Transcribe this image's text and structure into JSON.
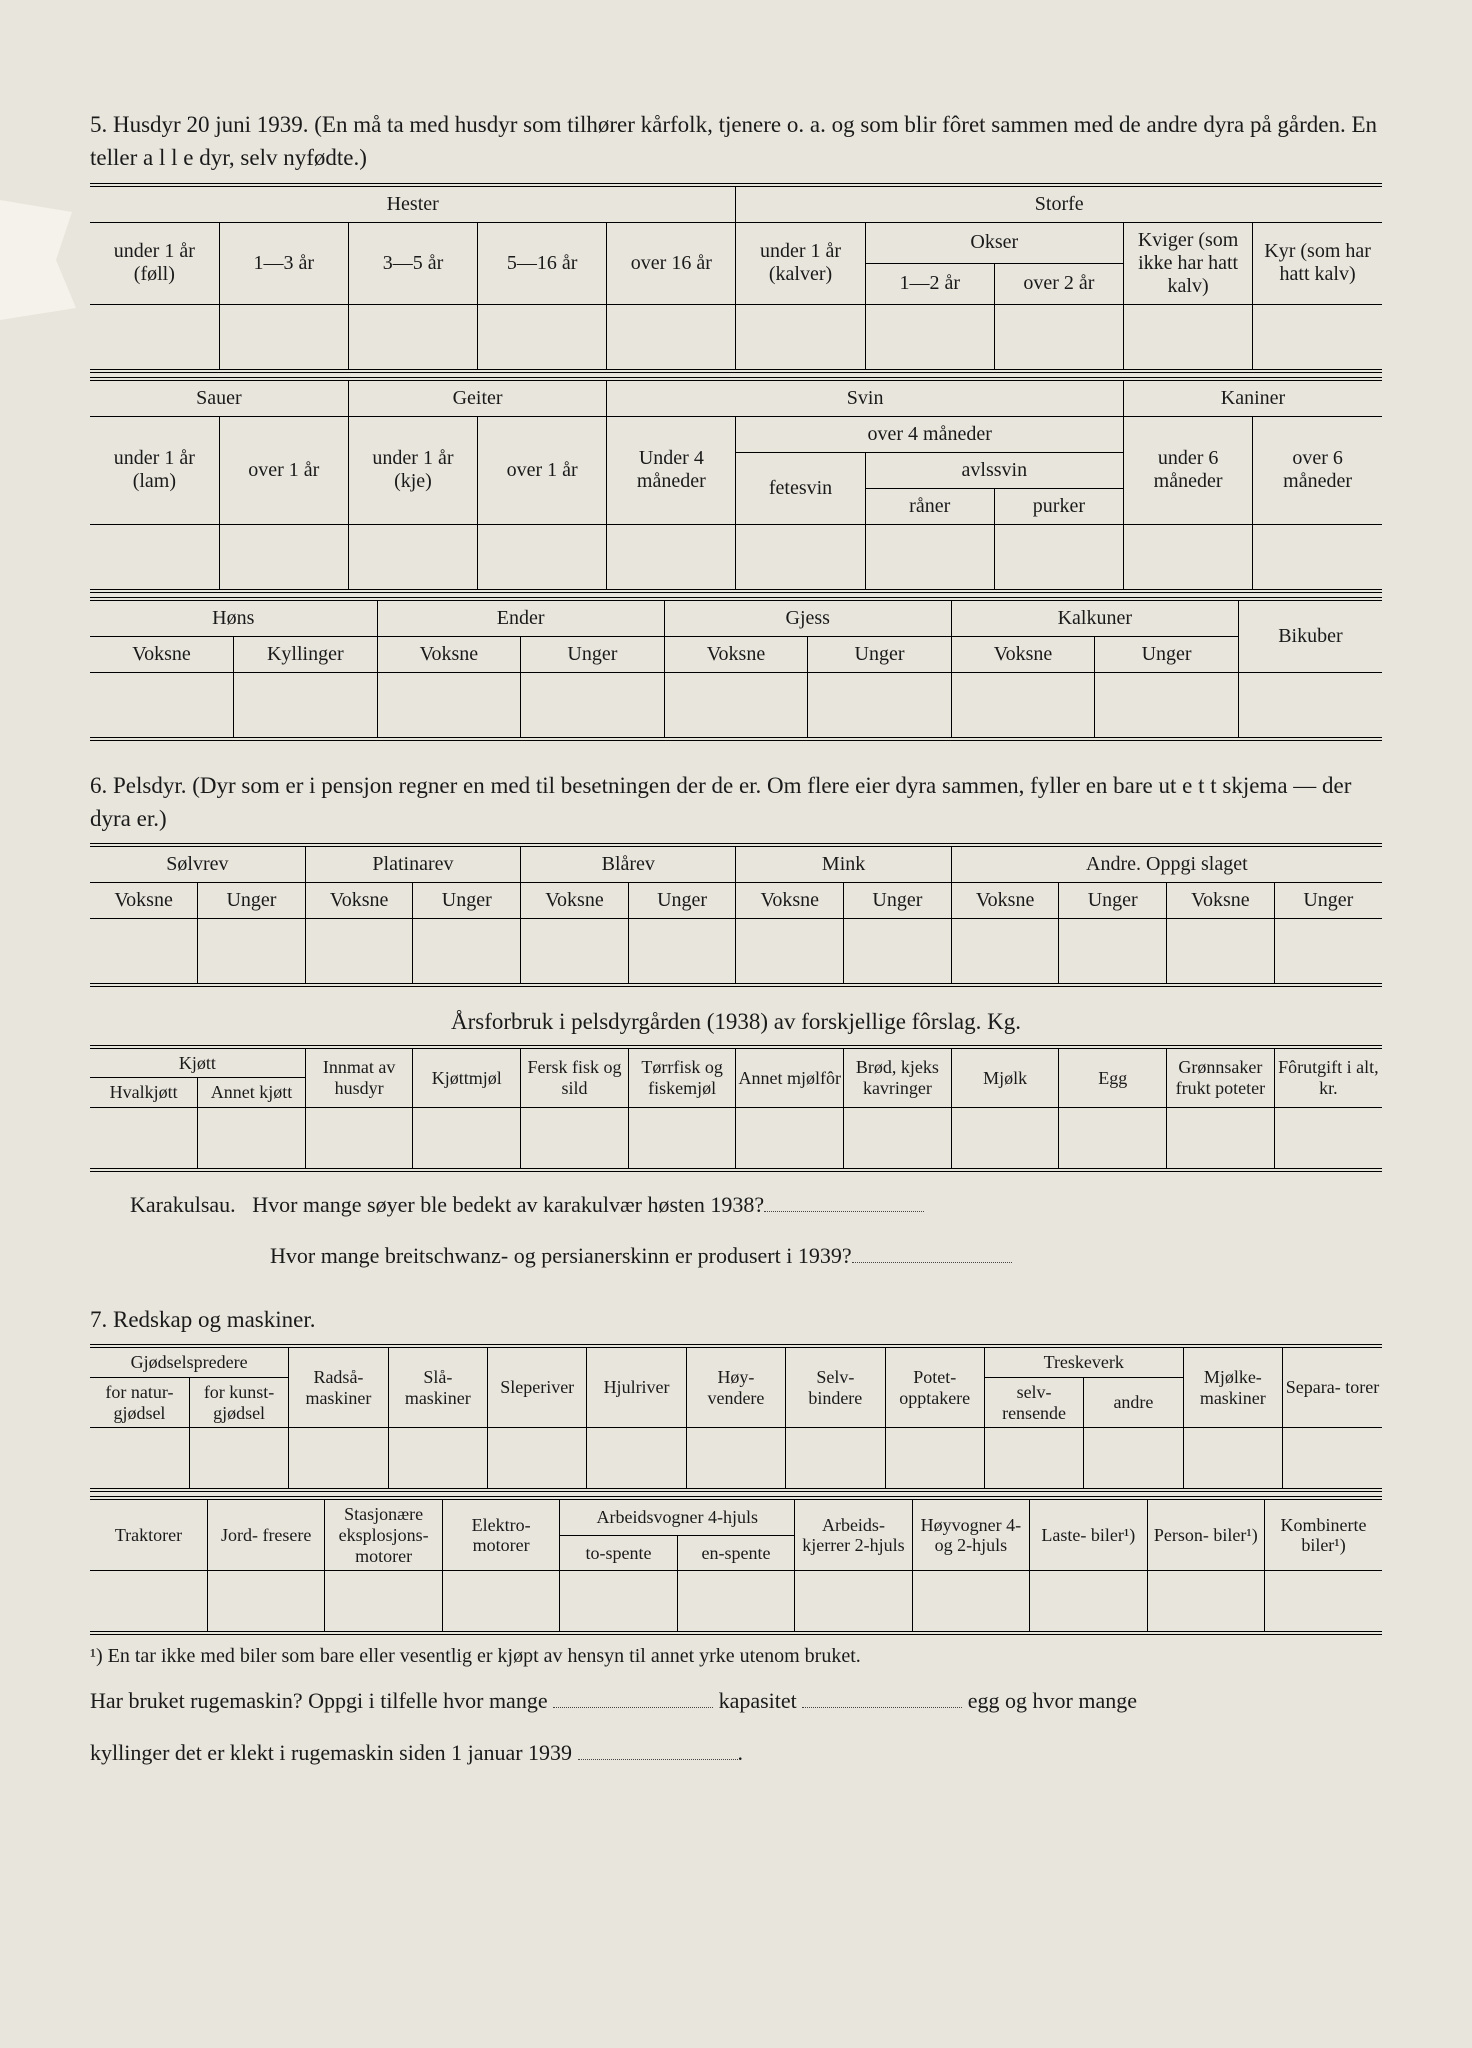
{
  "s5": {
    "num": "5.",
    "title": "Husdyr 20 juni 1939.  (En må ta med husdyr som tilhører kårfolk, tjenere o. a. og som blir fôret sammen med de andre dyra på gården.  En teller a l l e dyr, selv nyfødte.)",
    "hester": "Hester",
    "storfe": "Storfe",
    "h_u1": "under 1 år (føll)",
    "h_1_3": "1—3 år",
    "h_3_5": "3—5 år",
    "h_5_16": "5—16 år",
    "h_o16": "over 16 år",
    "s_u1": "under 1 år (kalver)",
    "okser": "Okser",
    "o_1_2": "1—2 år",
    "o_o2": "over 2 år",
    "kviger": "Kviger (som ikke har hatt kalv)",
    "kyr": "Kyr (som har hatt kalv)",
    "sauer": "Sauer",
    "geiter": "Geiter",
    "svin": "Svin",
    "kaniner": "Kaniner",
    "sau_u1": "under 1 år (lam)",
    "sau_o1": "over 1 år",
    "geit_u1": "under 1 år (kje)",
    "geit_o1": "over 1 år",
    "sv_u4": "Under 4 måneder",
    "sv_o4": "over 4 måneder",
    "fetesvin": "fetesvin",
    "avlssvin": "avlssvin",
    "raner": "råner",
    "purker": "purker",
    "kan_u6": "under 6 måneder",
    "kan_o6": "over 6 måneder",
    "hons": "Høns",
    "ender": "Ender",
    "gjess": "Gjess",
    "kalkuner": "Kalkuner",
    "bikuber": "Bikuber",
    "voksne": "Voksne",
    "kyllinger": "Kyllinger",
    "unger": "Unger"
  },
  "s6": {
    "num": "6.",
    "title": "Pelsdyr.  (Dyr som er i pensjon regner en med til besetningen der de er.  Om flere eier dyra sammen, fyller en bare ut e t t skjema — der dyra er.)",
    "solvrev": "Sølvrev",
    "platinarev": "Platinarev",
    "blarev": "Blårev",
    "mink": "Mink",
    "andre": "Andre. Oppgi slaget",
    "voksne": "Voksne",
    "unger": "Unger",
    "aarsforbruk": "Årsforbruk i pelsdyrgården (1938) av forskjellige fôrslag. Kg.",
    "kjott": "Kjøtt",
    "hvalkjott": "Hvalkjøtt",
    "annetkjott": "Annet kjøtt",
    "innmat": "Innmat av husdyr",
    "kjottmjol": "Kjøttmjøl",
    "ferskfisk": "Fersk fisk og sild",
    "torrfisk": "Tørrfisk og fiskemjøl",
    "annetmjolfor": "Annet mjølfôr",
    "brod": "Brød, kjeks kavringer",
    "mjolk": "Mjølk",
    "egg": "Egg",
    "gronnsaker": "Grønnsaker frukt poteter",
    "forutgift": "Fôrutgift i alt, kr.",
    "karakul": "Karakulsau.",
    "kq1": "Hvor mange søyer ble bedekt av karakulvær høsten 1938?",
    "kq2": "Hvor mange breitschwanz- og persianerskinn er produsert i 1939?"
  },
  "s7": {
    "num": "7.",
    "title": "Redskap og maskiner.",
    "gjodselspredere": "Gjødselspredere",
    "fornatur": "for natur- gjødsel",
    "forkunst": "for kunst- gjødsel",
    "radsa": "Radså- maskiner",
    "sla": "Slå- maskiner",
    "sleperiver": "Sleperiver",
    "hjulriver": "Hjulriver",
    "hoyvendere": "Høy- vendere",
    "selvbindere": "Selv- bindere",
    "potet": "Potet- opptakere",
    "treskeverk": "Treskeverk",
    "selvrens": "selv- rensende",
    "andre": "andre",
    "mjolke": "Mjølke- maskiner",
    "separa": "Separa- torer",
    "traktorer": "Traktorer",
    "jordfresere": "Jord- fresere",
    "stasjonaere": "Stasjonære eksplosjons- motorer",
    "elektro": "Elektro- motorer",
    "arbeidsvogner": "Arbeidsvogner 4-hjuls",
    "tospente": "to-spente",
    "enspente": "en-spente",
    "arbeidskjerrer": "Arbeids- kjerrer 2-hjuls",
    "hoyvogner": "Høyvogner 4- og 2-hjuls",
    "lastebiler": "Laste- biler¹)",
    "personbiler": "Person- biler¹)",
    "kombinerte": "Kombinerte biler¹)",
    "footnote1": "¹) En tar ikke med biler som bare eller vesentlig er kjøpt av hensyn til annet yrke utenom bruket.",
    "q_ruge1": "Har bruket rugemaskin?  Oppgi i tilfelle hvor mange",
    "q_ruge2": "kapasitet",
    "q_ruge3": "egg og hvor mange",
    "q_ruge4": "kyllinger det er klekt i rugemaskin siden 1 januar 1939"
  }
}
